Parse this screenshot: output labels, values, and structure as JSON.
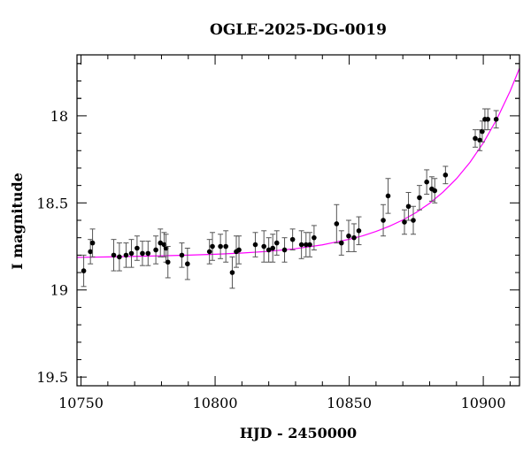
{
  "chart_data": {
    "type": "scatter",
    "title": "OGLE-2025-DG-0019",
    "xlabel": "HJD - 2450000",
    "ylabel": "I magnitude",
    "xlim": [
      10748.5,
      10913.5
    ],
    "ylim": [
      19.55,
      17.65
    ],
    "y_inverted": true,
    "x_ticks": [
      10750,
      10800,
      10850,
      10900
    ],
    "y_ticks": [
      18,
      18.5,
      19,
      19.5
    ],
    "x_tick_labels": [
      "10750",
      "10800",
      "10850",
      "10900"
    ],
    "y_tick_labels": [
      "18",
      "18.5",
      "19",
      "19.5"
    ],
    "grid": false,
    "legend": "none",
    "colors": {
      "points": "#000000",
      "model": "#ff00ff"
    },
    "series": [
      {
        "kind": "data",
        "points": [
          [
            10751.0,
            18.89,
            0.09
          ],
          [
            10753.5,
            18.78,
            0.07
          ],
          [
            10754.3,
            18.73,
            0.08
          ],
          [
            10762.2,
            18.8,
            0.09
          ],
          [
            10764.3,
            18.81,
            0.08
          ],
          [
            10766.8,
            18.8,
            0.07
          ],
          [
            10768.8,
            18.79,
            0.08
          ],
          [
            10770.9,
            18.76,
            0.07
          ],
          [
            10772.9,
            18.79,
            0.07
          ],
          [
            10775.0,
            18.79,
            0.07
          ],
          [
            10777.9,
            18.77,
            0.08
          ],
          [
            10779.6,
            18.73,
            0.08
          ],
          [
            10781.0,
            18.74,
            0.07
          ],
          [
            10781.7,
            18.76,
            0.08
          ],
          [
            10782.4,
            18.84,
            0.09
          ],
          [
            10787.6,
            18.8,
            0.07
          ],
          [
            10789.7,
            18.85,
            0.09
          ],
          [
            10797.9,
            18.78,
            0.07
          ],
          [
            10799.0,
            18.75,
            0.08
          ],
          [
            10802.0,
            18.75,
            0.07
          ],
          [
            10804.0,
            18.75,
            0.09
          ],
          [
            10806.4,
            18.9,
            0.09
          ],
          [
            10807.9,
            18.78,
            0.09
          ],
          [
            10808.9,
            18.77,
            0.08
          ],
          [
            10815.0,
            18.74,
            0.07
          ],
          [
            10818.2,
            18.75,
            0.09
          ],
          [
            10820.0,
            18.77,
            0.07
          ],
          [
            10821.5,
            18.76,
            0.08
          ],
          [
            10823.0,
            18.73,
            0.07
          ],
          [
            10825.9,
            18.77,
            0.07
          ],
          [
            10828.9,
            18.71,
            0.06
          ],
          [
            10832.2,
            18.74,
            0.08
          ],
          [
            10833.9,
            18.74,
            0.07
          ],
          [
            10835.3,
            18.74,
            0.07
          ],
          [
            10836.9,
            18.7,
            0.07
          ],
          [
            10845.3,
            18.62,
            0.11
          ],
          [
            10847.1,
            18.73,
            0.07
          ],
          [
            10849.8,
            18.69,
            0.09
          ],
          [
            10851.8,
            18.7,
            0.08
          ],
          [
            10853.6,
            18.66,
            0.08
          ],
          [
            10862.7,
            18.6,
            0.09
          ],
          [
            10864.5,
            18.46,
            0.1
          ],
          [
            10870.6,
            18.61,
            0.07
          ],
          [
            10872.1,
            18.52,
            0.08
          ],
          [
            10873.9,
            18.6,
            0.08
          ],
          [
            10876.2,
            18.47,
            0.07
          ],
          [
            10878.9,
            18.38,
            0.07
          ],
          [
            10880.8,
            18.42,
            0.07
          ],
          [
            10881.9,
            18.43,
            0.07
          ],
          [
            10885.9,
            18.34,
            0.05
          ],
          [
            10897.0,
            18.13,
            0.05
          ],
          [
            10898.7,
            18.14,
            0.06
          ],
          [
            10899.6,
            18.09,
            0.06
          ],
          [
            10900.6,
            18.02,
            0.06
          ],
          [
            10901.7,
            18.02,
            0.06
          ],
          [
            10904.8,
            18.02,
            0.05
          ]
        ]
      },
      {
        "kind": "model",
        "type": "line",
        "x": [
          10748.5,
          10760,
          10770,
          10780,
          10790,
          10800,
          10810,
          10820,
          10830,
          10840,
          10850,
          10855,
          10860,
          10865,
          10870,
          10875,
          10880,
          10885,
          10890,
          10895,
          10900,
          10905,
          10910,
          10913.5
        ],
        "y": [
          18.813,
          18.81,
          18.807,
          18.804,
          18.8,
          18.795,
          18.788,
          18.778,
          18.763,
          18.741,
          18.709,
          18.689,
          18.664,
          18.634,
          18.598,
          18.555,
          18.502,
          18.438,
          18.361,
          18.268,
          18.156,
          18.021,
          17.859,
          17.727
        ]
      }
    ]
  }
}
